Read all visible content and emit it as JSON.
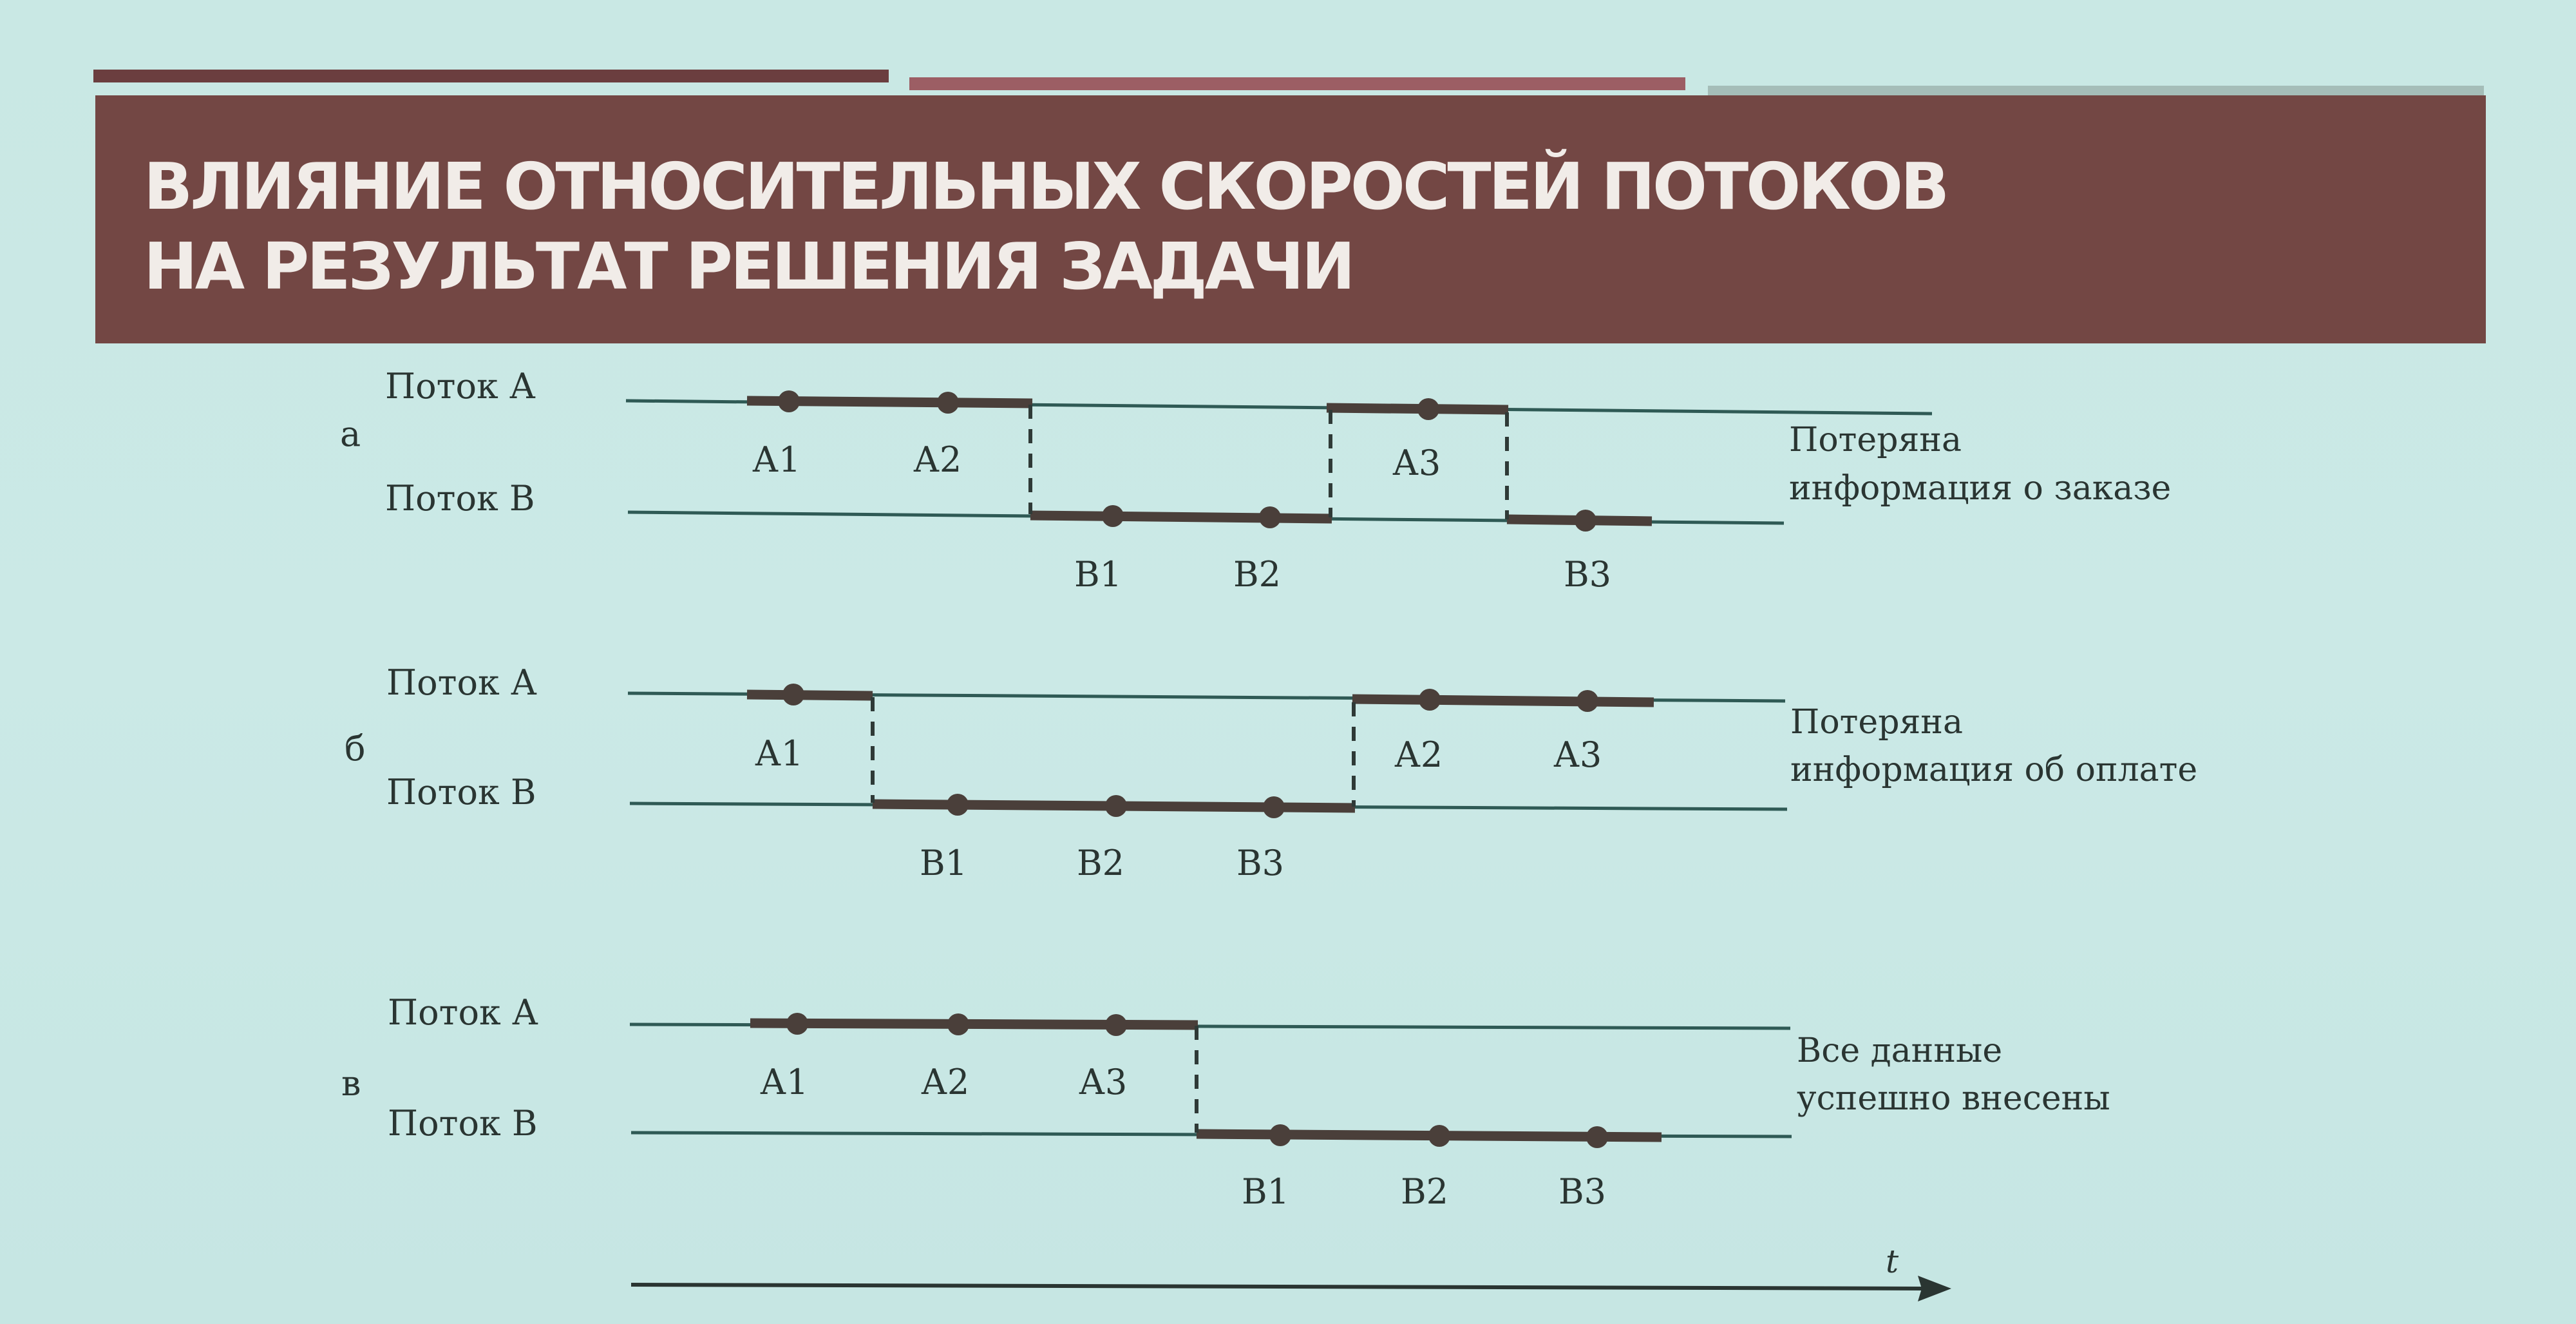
{
  "title": {
    "line1": "Влияние относительных скоростей потоков",
    "line2": "на результат решения задачи"
  },
  "colors": {
    "background": "#c9e8e4",
    "title_band": "#734744",
    "title_text": "#f1ece8",
    "thin_line": "#2f5a55",
    "thick_line": "#4a3f3a",
    "text": "#2a3532"
  },
  "diagrams": [
    {
      "id": "a",
      "letter": "а",
      "stream_a_label": "Поток  А",
      "stream_b_label": "Поток  В",
      "points_a": [
        "А1",
        "А2",
        "А3"
      ],
      "points_b": [
        "В1",
        "В2",
        "В3"
      ],
      "note_line1": "Потеряна",
      "note_line2": "информация о заказе"
    },
    {
      "id": "b",
      "letter": "б",
      "stream_a_label": "Поток  А",
      "stream_b_label": "Поток  В",
      "points_a": [
        "А1",
        "А2",
        "А3"
      ],
      "points_b": [
        "В1",
        "В2",
        "В3"
      ],
      "note_line1": "Потеряна",
      "note_line2": "информация об оплате"
    },
    {
      "id": "c",
      "letter": "в",
      "stream_a_label": "Поток  А",
      "stream_b_label": "Поток  В",
      "points_a": [
        "А1",
        "А2",
        "А3"
      ],
      "points_b": [
        "В1",
        "В2",
        "В3"
      ],
      "note_line1": "Все данные",
      "note_line2": "успешно внесены"
    }
  ],
  "time_axis_label": "t"
}
